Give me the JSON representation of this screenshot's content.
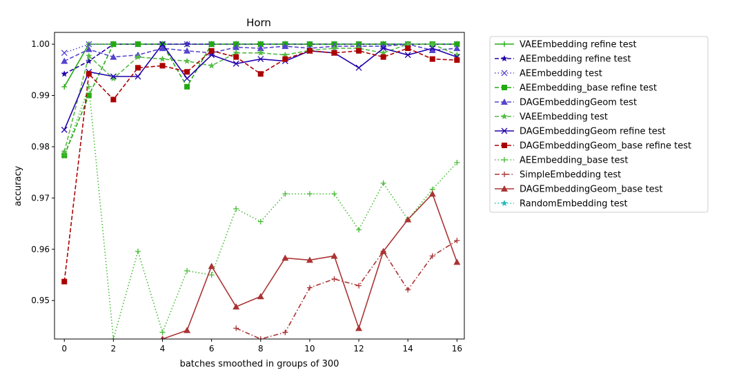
{
  "chart_data": {
    "type": "line",
    "title": "Horn",
    "xlabel": "batches smoothed in groups of 300",
    "ylabel": "accuracy",
    "xlim": [
      -0.4,
      16.3
    ],
    "ylim": [
      0.9425,
      1.0023
    ],
    "xticks": [
      0,
      2,
      4,
      6,
      8,
      10,
      12,
      14,
      16
    ],
    "yticks": [
      0.95,
      0.96,
      0.97,
      0.98,
      0.99,
      1.0
    ],
    "ytick_labels": [
      "0.95",
      "0.96",
      "0.97",
      "0.98",
      "0.99",
      "1.00"
    ],
    "grid": false,
    "legend_position": "outside-right",
    "x": [
      0,
      1,
      2,
      3,
      4,
      5,
      6,
      7,
      8,
      9,
      10,
      11,
      12,
      13,
      14,
      15,
      16
    ],
    "series": [
      {
        "name": "VAEEmbedding refine test",
        "color": "#22aa11",
        "dash": "solid",
        "marker": "plus",
        "values": [
          0.9917,
          1.0,
          1.0,
          1.0,
          1.0,
          1.0,
          1.0,
          1.0,
          1.0,
          1.0,
          1.0,
          1.0,
          1.0,
          1.0,
          1.0,
          1.0,
          1.0
        ]
      },
      {
        "name": "AEEmbedding refine test",
        "color": "#2200aa",
        "dash": "dashed",
        "marker": "star",
        "values": [
          0.9942,
          0.9967,
          1.0,
          1.0,
          1.0,
          1.0,
          1.0,
          1.0,
          1.0,
          1.0,
          1.0,
          1.0,
          1.0,
          1.0,
          1.0,
          1.0,
          1.0
        ]
      },
      {
        "name": "AEEmbedding test",
        "color": "#5544cc",
        "dash": "dotted",
        "marker": "x",
        "values": [
          0.9983,
          1.0,
          1.0,
          1.0,
          1.0,
          1.0,
          1.0,
          1.0,
          1.0,
          1.0,
          1.0,
          1.0,
          1.0,
          1.0,
          1.0,
          1.0,
          1.0
        ]
      },
      {
        "name": "AEEmbedding_base refine test",
        "color": "#22aa11",
        "dash": "dashed",
        "marker": "square",
        "values": [
          0.9783,
          0.99,
          1.0,
          1.0,
          1.0,
          0.9917,
          1.0,
          1.0,
          1.0,
          1.0,
          1.0,
          1.0,
          1.0,
          1.0,
          1.0,
          1.0,
          1.0
        ]
      },
      {
        "name": "DAGEmbeddingGeom test",
        "color": "#5544cc",
        "dash": "dashed",
        "marker": "triangle",
        "values": [
          0.9967,
          0.999,
          0.9975,
          0.9979,
          0.9992,
          0.9987,
          0.9983,
          0.9994,
          0.9992,
          0.9996,
          0.9992,
          0.9996,
          0.9996,
          0.9996,
          1.0,
          0.9988,
          0.9992
        ]
      },
      {
        "name": "VAEEmbedding test",
        "color": "#55bb44",
        "dash": "dashed",
        "marker": "star",
        "values": [
          0.979,
          0.9977,
          0.9933,
          0.9975,
          0.9971,
          0.9967,
          0.9958,
          0.9983,
          0.9983,
          0.9979,
          0.9988,
          0.9992,
          0.9992,
          0.9983,
          1.0,
          1.0,
          0.9979
        ]
      },
      {
        "name": "DAGEmbeddingGeom refine test",
        "color": "#2200aa",
        "dash": "solid",
        "marker": "x",
        "values": [
          0.9833,
          0.9946,
          0.9937,
          0.9937,
          1.0,
          0.9933,
          0.9979,
          0.9962,
          0.9971,
          0.9967,
          0.9987,
          0.9983,
          0.9954,
          0.9992,
          0.9979,
          0.9992,
          0.9975
        ]
      },
      {
        "name": "DAGEmbeddingGeom_base refine test",
        "color": "#aa0000",
        "dash": "dashed",
        "marker": "square",
        "values": [
          0.9537,
          0.9942,
          0.9892,
          0.9954,
          0.9958,
          0.9946,
          0.9987,
          0.9975,
          0.9942,
          0.9971,
          0.9987,
          0.9983,
          0.9987,
          0.9975,
          0.9992,
          0.9971,
          0.9969
        ]
      },
      {
        "name": "AEEmbedding_base test",
        "color": "#44bb33",
        "dash": "dotted",
        "marker": "plus",
        "values": [
          0.9783,
          0.9917,
          0.9425,
          0.9596,
          0.9438,
          0.9558,
          0.955,
          0.9679,
          0.9654,
          0.9708,
          0.9708,
          0.9708,
          0.9638,
          0.9729,
          0.9658,
          0.9717,
          0.9769
        ]
      },
      {
        "name": "SimpleEmbedding test",
        "color": "#aa3333",
        "dash": "dashdot",
        "marker": "plus",
        "values": [
          null,
          null,
          null,
          null,
          null,
          null,
          null,
          0.9446,
          0.9425,
          0.9438,
          0.9525,
          0.9542,
          0.9529,
          0.9596,
          0.9521,
          0.9587,
          0.9617
        ]
      },
      {
        "name": "DAGEmbeddingGeom_base test",
        "color": "#aa3333",
        "dash": "solid",
        "marker": "triangle",
        "values": [
          null,
          null,
          null,
          null,
          0.9425,
          0.9442,
          0.9567,
          0.9488,
          0.9508,
          0.9583,
          0.9579,
          0.9587,
          0.9446,
          0.9596,
          0.9658,
          0.9708,
          0.9575
        ]
      },
      {
        "name": "RandomEmbedding test",
        "color": "#22bbbb",
        "dash": "dotted",
        "marker": "star",
        "values": [
          null,
          null,
          null,
          null,
          null,
          null,
          null,
          null,
          null,
          null,
          null,
          null,
          null,
          null,
          null,
          null,
          null
        ]
      }
    ]
  }
}
